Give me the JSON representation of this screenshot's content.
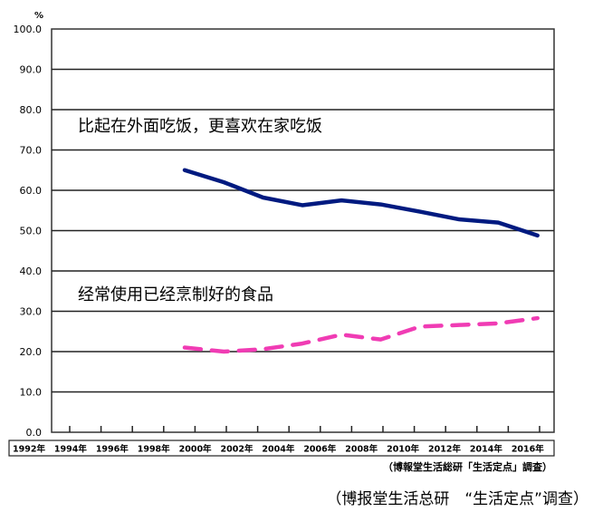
{
  "chart_data": {
    "type": "line",
    "unit_label": "%",
    "ylim": [
      0,
      100
    ],
    "yticks": [
      "0.0",
      "10.0",
      "20.0",
      "30.0",
      "40.0",
      "50.0",
      "60.0",
      "70.0",
      "80.0",
      "90.0",
      "100.0"
    ],
    "xtick_labels": [
      "1992年",
      "1994年",
      "1996年",
      "1998年",
      "2000年",
      "2002年",
      "2004年",
      "2006年",
      "2008年",
      "2010年",
      "2012年",
      "2014年",
      "2016年"
    ],
    "x": [
      1998,
      2000,
      2002,
      2004,
      2006,
      2008,
      2010,
      2012,
      2014,
      2016
    ],
    "series": [
      {
        "name": "比起在外面吃饭，更喜欢在家吃饭",
        "color": "#001a80",
        "style": "solid",
        "values": [
          65.0,
          62.0,
          58.2,
          56.3,
          57.5,
          56.5,
          54.7,
          52.8,
          52.0,
          48.8
        ]
      },
      {
        "name": "经常使用已经烹制好的食品",
        "color": "#f03cb4",
        "style": "dashed",
        "values": [
          21.0,
          20.0,
          20.6,
          22.0,
          24.2,
          23.0,
          26.2,
          26.6,
          27.0,
          28.3
        ]
      }
    ],
    "grid": true,
    "source_small": "（博報堂生活総研「生活定点」調査）",
    "source": "（博报堂生活总研　“生活定点”调查）"
  }
}
